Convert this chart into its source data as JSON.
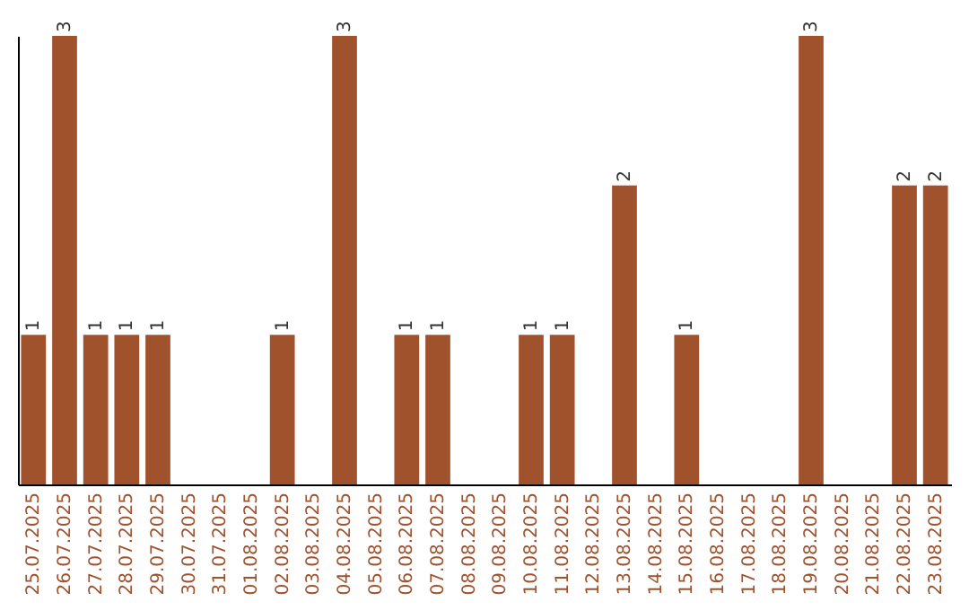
{
  "chart_data": {
    "type": "bar",
    "categories": [
      "25.07.2025",
      "26.07.2025",
      "27.07.2025",
      "28.07.2025",
      "29.07.2025",
      "30.07.2025",
      "31.07.2025",
      "01.08.2025",
      "02.08.2025",
      "03.08.2025",
      "04.08.2025",
      "05.08.2025",
      "06.08.2025",
      "07.08.2025",
      "08.08.2025",
      "09.08.2025",
      "10.08.2025",
      "11.08.2025",
      "12.08.2025",
      "13.08.2025",
      "14.08.2025",
      "15.08.2025",
      "16.08.2025",
      "17.08.2025",
      "18.08.2025",
      "19.08.2025",
      "20.08.2025",
      "21.08.2025",
      "22.08.2025",
      "23.08.2025"
    ],
    "values": [
      1,
      3,
      1,
      1,
      1,
      0,
      0,
      0,
      1,
      0,
      3,
      0,
      1,
      1,
      0,
      0,
      1,
      1,
      0,
      2,
      0,
      1,
      0,
      0,
      0,
      3,
      0,
      0,
      2,
      2
    ],
    "value_labels": [
      "1",
      "3",
      "1",
      "1",
      "1",
      null,
      null,
      null,
      "1",
      null,
      "3",
      null,
      "1",
      "1",
      null,
      null,
      "1",
      "1",
      null,
      "2",
      null,
      "1",
      null,
      null,
      null,
      "3",
      null,
      null,
      "2",
      "2"
    ],
    "color": "#a0522d",
    "tick_labels": "x"
  }
}
